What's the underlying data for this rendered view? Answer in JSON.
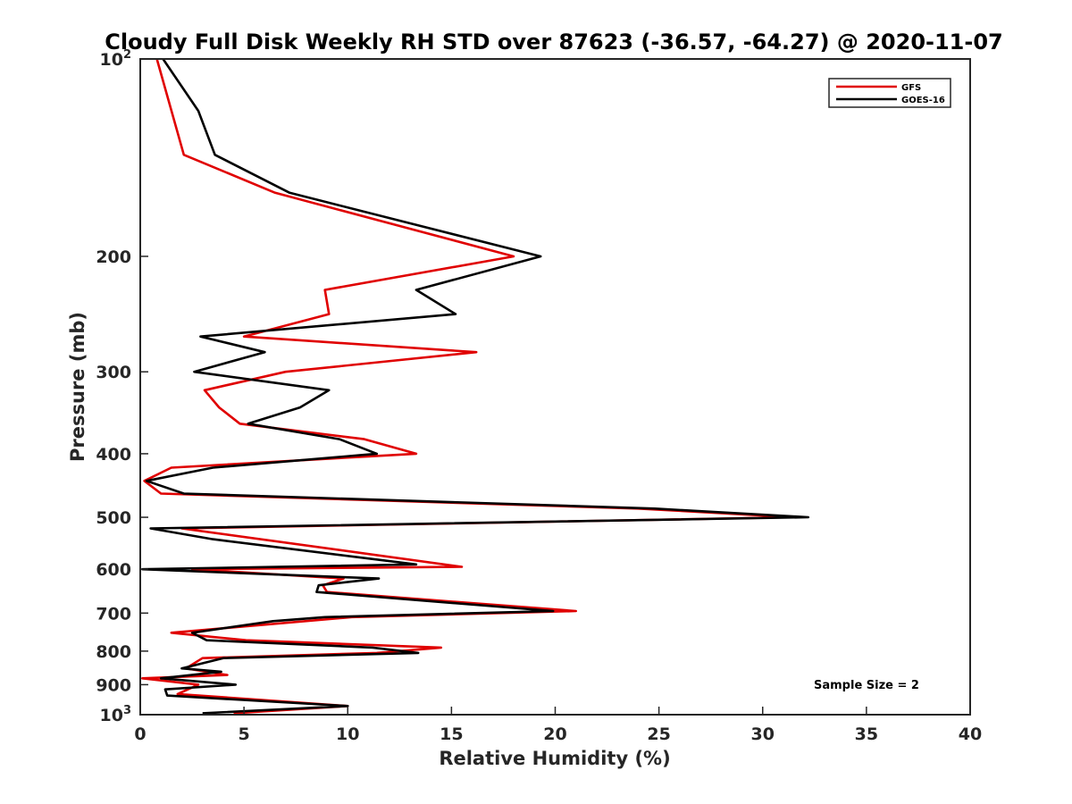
{
  "chart_data": {
    "type": "line",
    "title": "Cloudy Full Disk Weekly RH STD over 87623 (-36.57, -64.27) @ 2020-11-07",
    "xlabel": "Relative Humidity (%)",
    "ylabel": "Pressure (mb)",
    "xlim": [
      0,
      40
    ],
    "ylim": [
      100,
      1000
    ],
    "yscale": "log",
    "y_reversed": true,
    "xticks": [
      0,
      5,
      10,
      15,
      20,
      25,
      30,
      35,
      40
    ],
    "yticks": [
      {
        "value": 100,
        "label": "10",
        "sup": "2"
      },
      {
        "value": 200,
        "label": "200",
        "sup": ""
      },
      {
        "value": 300,
        "label": "300",
        "sup": ""
      },
      {
        "value": 400,
        "label": "400",
        "sup": ""
      },
      {
        "value": 500,
        "label": "500",
        "sup": ""
      },
      {
        "value": 600,
        "label": "600",
        "sup": ""
      },
      {
        "value": 700,
        "label": "700",
        "sup": ""
      },
      {
        "value": 800,
        "label": "800",
        "sup": ""
      },
      {
        "value": 900,
        "label": "900",
        "sup": ""
      },
      {
        "value": 1000,
        "label": "10",
        "sup": "3"
      }
    ],
    "grid": false,
    "legend_position": "top-right",
    "annotation": "Sample Size = 2",
    "series": [
      {
        "name": "GFS",
        "color": "#e00000",
        "points": [
          {
            "x": 0.8,
            "y": 100
          },
          {
            "x": 2.1,
            "y": 140
          },
          {
            "x": 6.5,
            "y": 160
          },
          {
            "x": 18.0,
            "y": 200
          },
          {
            "x": 8.9,
            "y": 225
          },
          {
            "x": 9.1,
            "y": 245
          },
          {
            "x": 5.0,
            "y": 265
          },
          {
            "x": 16.2,
            "y": 280
          },
          {
            "x": 7.0,
            "y": 300
          },
          {
            "x": 3.1,
            "y": 320
          },
          {
            "x": 3.8,
            "y": 340
          },
          {
            "x": 4.8,
            "y": 360
          },
          {
            "x": 10.8,
            "y": 380
          },
          {
            "x": 13.3,
            "y": 400
          },
          {
            "x": 1.5,
            "y": 420
          },
          {
            "x": 0.2,
            "y": 440
          },
          {
            "x": 1.0,
            "y": 460
          },
          {
            "x": 24.0,
            "y": 485
          },
          {
            "x": 31.5,
            "y": 500
          },
          {
            "x": 2.0,
            "y": 520
          },
          {
            "x": 15.5,
            "y": 595
          },
          {
            "x": 2.5,
            "y": 600
          },
          {
            "x": 9.8,
            "y": 620
          },
          {
            "x": 8.8,
            "y": 635
          },
          {
            "x": 9.0,
            "y": 650
          },
          {
            "x": 21.0,
            "y": 695
          },
          {
            "x": 10.2,
            "y": 710
          },
          {
            "x": 1.5,
            "y": 750
          },
          {
            "x": 5.1,
            "y": 770
          },
          {
            "x": 14.5,
            "y": 790
          },
          {
            "x": 11.4,
            "y": 805
          },
          {
            "x": 3.0,
            "y": 820
          },
          {
            "x": 2.2,
            "y": 850
          },
          {
            "x": 4.2,
            "y": 870
          },
          {
            "x": 0.1,
            "y": 880
          },
          {
            "x": 2.8,
            "y": 900
          },
          {
            "x": 1.8,
            "y": 930
          },
          {
            "x": 10.0,
            "y": 970
          },
          {
            "x": 4.5,
            "y": 995
          }
        ]
      },
      {
        "name": "GOES-16",
        "color": "#000000",
        "points": [
          {
            "x": 1.1,
            "y": 100
          },
          {
            "x": 2.8,
            "y": 120
          },
          {
            "x": 3.6,
            "y": 140
          },
          {
            "x": 7.2,
            "y": 160
          },
          {
            "x": 19.3,
            "y": 200
          },
          {
            "x": 13.3,
            "y": 225
          },
          {
            "x": 15.2,
            "y": 245
          },
          {
            "x": 2.9,
            "y": 265
          },
          {
            "x": 6.0,
            "y": 280
          },
          {
            "x": 2.6,
            "y": 300
          },
          {
            "x": 9.1,
            "y": 320
          },
          {
            "x": 7.7,
            "y": 340
          },
          {
            "x": 5.2,
            "y": 360
          },
          {
            "x": 9.6,
            "y": 380
          },
          {
            "x": 11.4,
            "y": 400
          },
          {
            "x": 3.5,
            "y": 420
          },
          {
            "x": 0.3,
            "y": 440
          },
          {
            "x": 2.1,
            "y": 460
          },
          {
            "x": 24.8,
            "y": 485
          },
          {
            "x": 32.2,
            "y": 500
          },
          {
            "x": 0.5,
            "y": 520
          },
          {
            "x": 3.5,
            "y": 540
          },
          {
            "x": 13.3,
            "y": 590
          },
          {
            "x": 0.1,
            "y": 600
          },
          {
            "x": 11.5,
            "y": 620
          },
          {
            "x": 8.6,
            "y": 635
          },
          {
            "x": 8.5,
            "y": 650
          },
          {
            "x": 19.9,
            "y": 695
          },
          {
            "x": 8.9,
            "y": 710
          },
          {
            "x": 6.4,
            "y": 720
          },
          {
            "x": 2.5,
            "y": 750
          },
          {
            "x": 3.2,
            "y": 770
          },
          {
            "x": 11.2,
            "y": 790
          },
          {
            "x": 13.4,
            "y": 805
          },
          {
            "x": 4.0,
            "y": 820
          },
          {
            "x": 2.0,
            "y": 850
          },
          {
            "x": 3.9,
            "y": 860
          },
          {
            "x": 1.0,
            "y": 880
          },
          {
            "x": 4.6,
            "y": 900
          },
          {
            "x": 1.2,
            "y": 915
          },
          {
            "x": 1.3,
            "y": 935
          },
          {
            "x": 10.0,
            "y": 970
          },
          {
            "x": 3.0,
            "y": 995
          }
        ]
      }
    ]
  }
}
